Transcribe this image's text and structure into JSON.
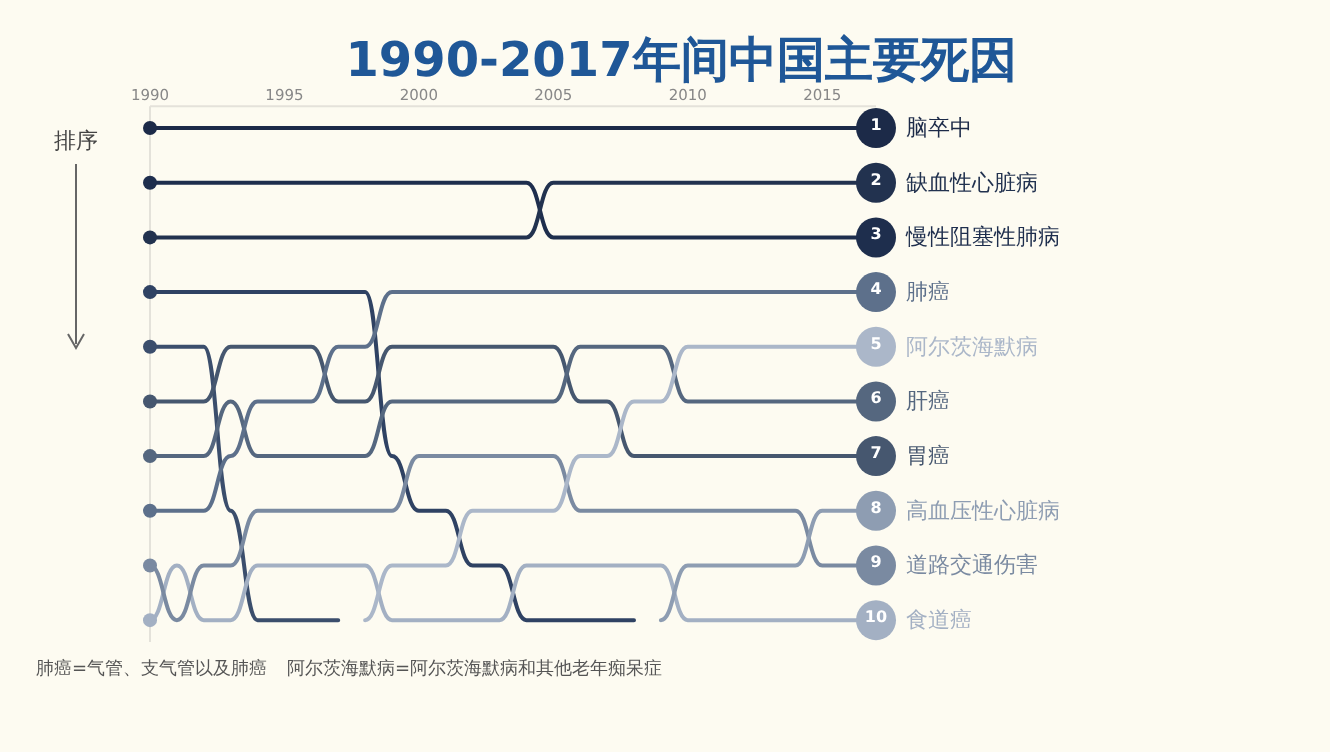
{
  "chart_data": {
    "type": "line",
    "title": "1990-2017年间中国主要死因",
    "ylabel": "排序",
    "x": [
      1990,
      1991,
      1992,
      1993,
      1994,
      1995,
      1996,
      1997,
      1998,
      1999,
      2000,
      2001,
      2002,
      2003,
      2004,
      2005,
      2006,
      2007,
      2008,
      2009,
      2010,
      2011,
      2012,
      2013,
      2014,
      2015,
      2016,
      2017
    ],
    "xlim": [
      1990,
      2017
    ],
    "xticks": [
      1990,
      1995,
      2000,
      2005,
      2010,
      2015
    ],
    "ylim": [
      10.4,
      0.6
    ],
    "yticks": [
      1,
      2,
      3,
      4,
      5,
      6,
      7,
      8,
      9,
      10
    ],
    "legend": "right",
    "line_style": "solid",
    "series": [
      {
        "name": "脑卒中",
        "color": "#1c2a48",
        "values": [
          1,
          1,
          1,
          1,
          1,
          1,
          1,
          1,
          1,
          1,
          1,
          1,
          1,
          1,
          1,
          1,
          1,
          1,
          1,
          1,
          1,
          1,
          1,
          1,
          1,
          1,
          1,
          1
        ]
      },
      {
        "name": "缺血性心脏病",
        "color": "#22324f",
        "values": [
          3,
          3,
          3,
          3,
          3,
          3,
          3,
          3,
          3,
          3,
          3,
          3,
          3,
          3,
          3,
          2,
          2,
          2,
          2,
          2,
          2,
          2,
          2,
          2,
          2,
          2,
          2,
          2
        ]
      },
      {
        "name": "慢性阻塞性肺病",
        "color": "#1e2e4d",
        "values": [
          2,
          2,
          2,
          2,
          2,
          2,
          2,
          2,
          2,
          2,
          2,
          2,
          2,
          2,
          2,
          3,
          3,
          3,
          3,
          3,
          3,
          3,
          3,
          3,
          3,
          3,
          3,
          3
        ]
      },
      {
        "name": "肺癌",
        "color": "#5d708b",
        "values": [
          8,
          8,
          8,
          7,
          6,
          6,
          6,
          5,
          5,
          4,
          4,
          4,
          4,
          4,
          4,
          4,
          4,
          4,
          4,
          4,
          4,
          4,
          4,
          4,
          4,
          4,
          4,
          4
        ]
      },
      {
        "name": "阿尔茨海默病",
        "color": "#abb7c9",
        "values": [
          null,
          null,
          null,
          null,
          null,
          null,
          null,
          null,
          10,
          9,
          9,
          9,
          8,
          8,
          8,
          8,
          7,
          7,
          6,
          6,
          5,
          5,
          5,
          5,
          5,
          5,
          5,
          5
        ]
      },
      {
        "name": "肝癌",
        "color": "#55677f",
        "values": [
          7,
          7,
          7,
          6,
          7,
          7,
          7,
          7,
          7,
          6,
          6,
          6,
          6,
          6,
          6,
          6,
          5,
          5,
          5,
          5,
          6,
          6,
          6,
          6,
          6,
          6,
          6,
          6
        ]
      },
      {
        "name": "胃癌",
        "color": "#46576f",
        "values": [
          6,
          6,
          6,
          5,
          5,
          5,
          5,
          6,
          6,
          5,
          5,
          5,
          5,
          5,
          5,
          5,
          6,
          6,
          7,
          7,
          7,
          7,
          7,
          7,
          7,
          7,
          7,
          7
        ]
      },
      {
        "name": "高血压性心脏病",
        "color": "#8e9db2",
        "values": [
          null,
          null,
          null,
          null,
          null,
          null,
          null,
          null,
          null,
          null,
          null,
          null,
          null,
          null,
          null,
          null,
          null,
          null,
          null,
          10,
          9,
          9,
          9,
          9,
          9,
          8,
          8,
          8
        ]
      },
      {
        "name": "道路交通伤害",
        "color": "#7a8aa1",
        "values": [
          9,
          10,
          9,
          9,
          8,
          8,
          8,
          8,
          8,
          8,
          7,
          7,
          7,
          7,
          7,
          7,
          8,
          8,
          8,
          8,
          8,
          8,
          8,
          8,
          8,
          9,
          9,
          9
        ]
      },
      {
        "name": "食道癌",
        "color": "#a3b0c3",
        "values": [
          10,
          9,
          10,
          10,
          9,
          9,
          9,
          9,
          9,
          10,
          10,
          10,
          10,
          10,
          9,
          9,
          9,
          9,
          9,
          9,
          10,
          10,
          10,
          10,
          10,
          10,
          10,
          10
        ]
      },
      {
        "color": "#2f4263",
        "values": [
          4,
          4,
          4,
          4,
          4,
          4,
          4,
          4,
          4,
          7,
          8,
          8,
          9,
          9,
          10,
          10,
          10,
          10,
          10,
          null,
          null,
          null,
          null,
          null,
          null,
          null,
          null,
          null
        ]
      },
      {
        "color": "#3b4e6c",
        "values": [
          5,
          5,
          5,
          8,
          10,
          10,
          10,
          10,
          null,
          null,
          null,
          null,
          null,
          null,
          null,
          null,
          null,
          null,
          null,
          null,
          null,
          null,
          null,
          null,
          null,
          null,
          null,
          null
        ]
      }
    ],
    "annotations": [
      "肺癌=气管、支气管以及肺癌",
      "阿尔茨海默病=阿尔茨海默病和其他老年痴呆症"
    ]
  }
}
